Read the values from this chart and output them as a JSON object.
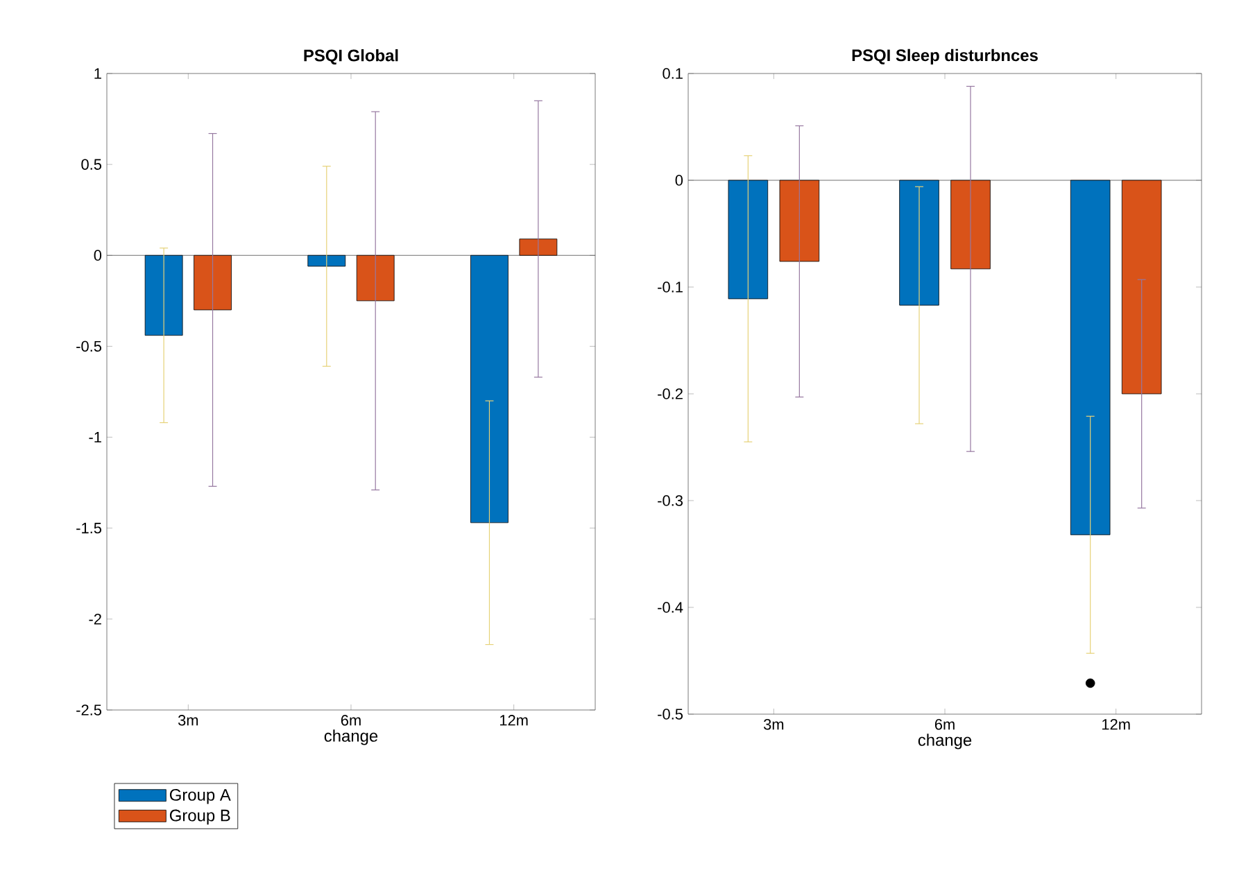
{
  "chart_data": [
    {
      "type": "bar",
      "title": "PSQI Global",
      "xlabel": "change",
      "categories": [
        "3m",
        "6m",
        "12m"
      ],
      "series": [
        {
          "name": "Group A",
          "color": "#0072bd",
          "values": [
            -0.44,
            -0.06,
            -1.47
          ],
          "errors": [
            0.48,
            0.55,
            0.67
          ]
        },
        {
          "name": "Group B",
          "color": "#d95319",
          "values": [
            -0.3,
            -0.25,
            0.09
          ],
          "errors": [
            0.97,
            1.04,
            0.76
          ]
        }
      ],
      "ylim": [
        -2.5,
        1
      ],
      "yticks": [
        -2.5,
        -2,
        -1.5,
        -1,
        -0.5,
        0,
        0.5,
        1
      ],
      "legend": "bottom left"
    },
    {
      "type": "bar",
      "title": "PSQI Sleep disturbnces",
      "xlabel": "change",
      "categories": [
        "3m",
        "6m",
        "12m"
      ],
      "series": [
        {
          "color": "#0072bd",
          "values": [
            -0.111,
            -0.117,
            -0.332
          ],
          "errors": [
            0.134,
            0.111,
            0.111
          ]
        },
        {
          "color": "#d95319",
          "values": [
            -0.076,
            -0.083,
            -0.2
          ],
          "errors": [
            0.127,
            0.171,
            0.107
          ]
        },
        {
          "type": "scatter",
          "color": "#000000",
          "x": [
            "12m"
          ],
          "values": [
            -0.471
          ],
          "marker": "circle"
        }
      ],
      "ylim": [
        -0.5,
        0.1
      ],
      "yticks": [
        -0.5,
        -0.4,
        -0.3,
        -0.2,
        -0.1,
        0,
        0.1
      ]
    }
  ]
}
